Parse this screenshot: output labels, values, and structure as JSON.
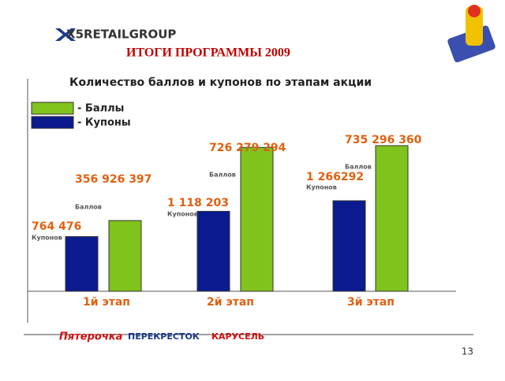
{
  "header": {
    "logo": "X5RETAILGROUP",
    "title": "ИТОГИ ПРОГРАММЫ 2009"
  },
  "chart_data": {
    "type": "bar",
    "title": "Количество баллов и купонов по этапам акции",
    "categories": [
      "1й этап",
      "2й этап",
      "3й этап"
    ],
    "series": [
      {
        "name": "- Баллы",
        "color": "#80c31c",
        "unit_label": "Баллов",
        "values": [
          356926397,
          726279294,
          735296360
        ],
        "value_labels": [
          "356 926 397",
          "726 279 294",
          "735 296 360"
        ]
      },
      {
        "name": "- Купоны",
        "color": "#0b1a8e",
        "unit_label": "Купонов",
        "values": [
          764476,
          1118203,
          1266292
        ],
        "value_labels": [
          "764 476",
          "1 118 203",
          "1 266292"
        ]
      }
    ]
  },
  "footer": {
    "logos": [
      "Пятерочка",
      "ПЕРЕКРЕСТОК",
      "КАРУСЕЛЬ"
    ],
    "page_number": 13
  }
}
